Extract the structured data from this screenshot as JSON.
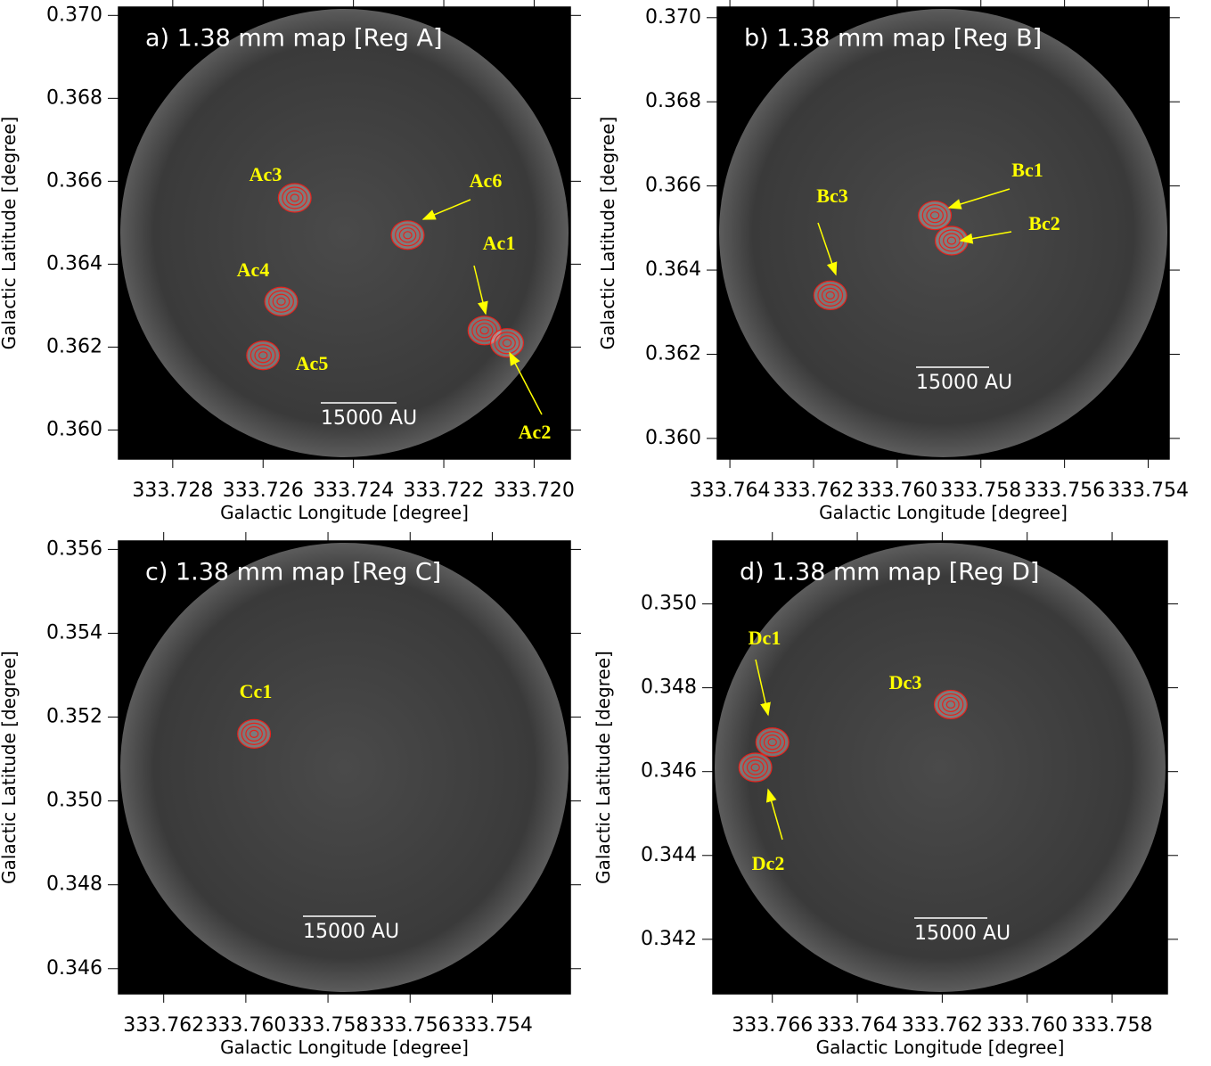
{
  "chart_data": [
    {
      "type": "map",
      "title": "a) 1.38 mm map [Reg A]",
      "x_label": "Galactic Longitude [degree]",
      "y_label": "Galactic Latitude [degree]",
      "scale_bar": "15000 AU",
      "xlim": [
        333.7292,
        333.7192
      ],
      "ylim": [
        0.3593,
        0.3702
      ],
      "xticks": [
        333.728,
        333.726,
        333.724,
        333.722,
        {
          "value": 333.72,
          "label": "333.720"
        }
      ],
      "yticks": [
        {
          "value": 0.37,
          "label": "0.370"
        },
        0.368,
        0.366,
        0.364,
        0.362,
        {
          "value": 0.36,
          "label": "0.360"
        }
      ],
      "contour_color": "#e8211b",
      "sources": [
        {
          "name": "Ac3",
          "x": 333.7253,
          "y": 0.3656
        },
        {
          "name": "Ac6",
          "x": 333.7228,
          "y": 0.3647
        },
        {
          "name": "Ac1",
          "x": 333.7211,
          "y": 0.3624
        },
        {
          "name": "Ac2",
          "x": 333.7206,
          "y": 0.3621
        },
        {
          "name": "Ac4",
          "x": 333.7256,
          "y": 0.3631
        },
        {
          "name": "Ac5",
          "x": 333.726,
          "y": 0.3618
        }
      ]
    },
    {
      "type": "map",
      "title": "b) 1.38 mm map [Reg B]",
      "x_label": "Galactic Longitude [degree]",
      "y_label": "Galactic Latitude [degree]",
      "scale_bar": "15000 AU",
      "xlim": [
        333.7643,
        333.7535
      ],
      "ylim": [
        0.35951,
        0.37025
      ],
      "xticks": [
        333.764,
        333.762,
        {
          "value": 333.76,
          "label": "333.760"
        },
        333.758,
        333.756,
        333.754
      ],
      "yticks": [
        {
          "value": 0.37,
          "label": "0.370"
        },
        0.368,
        0.366,
        0.364,
        0.362,
        {
          "value": 0.36,
          "label": "0.360"
        }
      ],
      "contour_color": "#e8211b",
      "sources": [
        {
          "name": "Bc1",
          "x": 333.7591,
          "y": 0.3653
        },
        {
          "name": "Bc2",
          "x": 333.7587,
          "y": 0.3647
        },
        {
          "name": "Bc3",
          "x": 333.7616,
          "y": 0.3634
        }
      ]
    },
    {
      "type": "map",
      "title": "c) 1.38 mm map [Reg C]",
      "x_label": "Galactic Longitude [degree]",
      "y_label": "Galactic Latitude [degree]",
      "scale_bar": "15000 AU",
      "xlim": [
        333.7631,
        333.7521
      ],
      "ylim": [
        0.3454,
        0.3562
      ],
      "xticks": [
        333.762,
        {
          "value": 333.76,
          "label": "333.760"
        },
        333.758,
        333.756,
        333.754
      ],
      "yticks": [
        0.356,
        0.354,
        0.352,
        {
          "value": 0.35,
          "label": "0.350"
        },
        0.348,
        0.346
      ],
      "contour_color": "#e8211b",
      "sources": [
        {
          "name": "Cc1",
          "x": 333.7598,
          "y": 0.3516
        }
      ]
    },
    {
      "type": "map",
      "title": "d) 1.38 mm map [Reg D]",
      "x_label": "Galactic Longitude [degree]",
      "y_label": "Galactic Latitude [degree]",
      "scale_bar": "15000 AU",
      "xlim": [
        333.7674,
        333.7567
      ],
      "ylim": [
        0.3407,
        0.3515
      ],
      "xticks": [
        333.766,
        333.764,
        333.762,
        {
          "value": 333.76,
          "label": "333.760"
        },
        333.758
      ],
      "yticks": [
        {
          "value": 0.35,
          "label": "0.350"
        },
        0.348,
        0.346,
        0.344,
        0.342
      ],
      "contour_color": "#e8211b",
      "sources": [
        {
          "name": "Dc1",
          "x": 333.766,
          "y": 0.3467
        },
        {
          "name": "Dc2",
          "x": 333.7664,
          "y": 0.3461
        },
        {
          "name": "Dc3",
          "x": 333.7618,
          "y": 0.3476
        }
      ]
    }
  ]
}
